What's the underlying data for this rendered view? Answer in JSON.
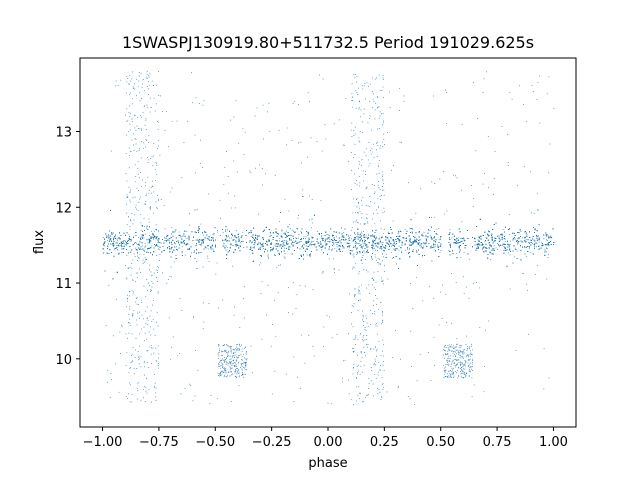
{
  "chart_data": {
    "type": "scatter",
    "title": "1SWASPJ130919.80+511732.5 Period 191029.625s",
    "xlabel": "phase",
    "ylabel": "flux",
    "xlim": [
      -1.1,
      1.1
    ],
    "ylim": [
      9.1,
      13.97
    ],
    "xticks": [
      -1.0,
      -0.75,
      -0.5,
      -0.25,
      0.0,
      0.25,
      0.5,
      0.75,
      1.0
    ],
    "xtick_labels": [
      "−1.00",
      "−0.75",
      "−0.50",
      "−0.25",
      "0.00",
      "0.25",
      "0.50",
      "0.75",
      "1.00"
    ],
    "yticks": [
      10,
      11,
      12,
      13
    ],
    "ytick_labels": [
      "10",
      "11",
      "12",
      "13"
    ],
    "grid": false,
    "marker_color": "#1f77b4",
    "series": [
      {
        "description": "folded light curve, two cycles shown (phase -1 to 1)",
        "main_band": {
          "center": 11.55,
          "core_halfwidth": 0.3,
          "x_range": [
            -1.0,
            1.0
          ]
        },
        "faint_clumps": [
          {
            "x_range": [
              -0.49,
              -0.36
            ],
            "y_range": [
              9.75,
              10.2
            ]
          },
          {
            "x_range": [
              0.51,
              0.64
            ],
            "y_range": [
              9.75,
              10.2
            ]
          }
        ],
        "bright_scatter_regions": [
          {
            "x_range": [
              -0.9,
              -0.75
            ],
            "y_range": [
              9.4,
              13.8
            ]
          },
          {
            "x_range": [
              0.1,
              0.25
            ],
            "y_range": [
              9.4,
              13.8
            ]
          }
        ],
        "gaps": [
          {
            "x_range": [
              -0.5,
              -0.47
            ]
          },
          {
            "x_range": [
              -0.38,
              -0.35
            ]
          },
          {
            "x_range": [
              0.5,
              0.53
            ]
          },
          {
            "x_range": [
              0.62,
              0.65
            ]
          }
        ]
      }
    ]
  }
}
